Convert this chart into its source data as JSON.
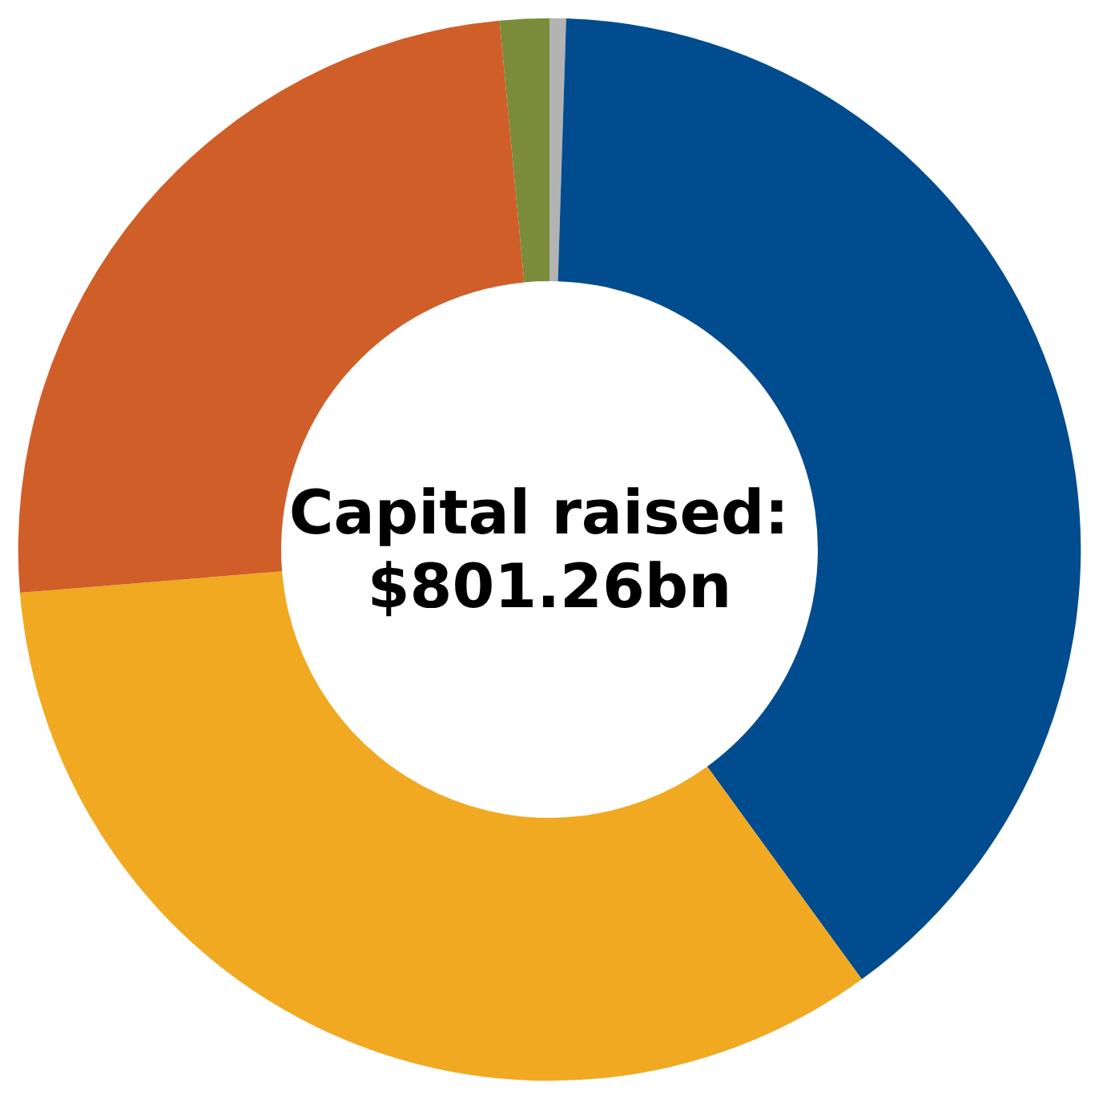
{
  "chart_data": {
    "type": "donut",
    "title": "Capital raised: $801.26bn",
    "categories": [
      null,
      null,
      null,
      null,
      null
    ],
    "values": [
      0.5,
      39.5,
      33.7,
      24.8,
      1.5
    ],
    "colors": [
      "#b3b3b3",
      "#004c8f",
      "#f0a920",
      "#d05e28",
      "#7a8b3a"
    ]
  }
}
